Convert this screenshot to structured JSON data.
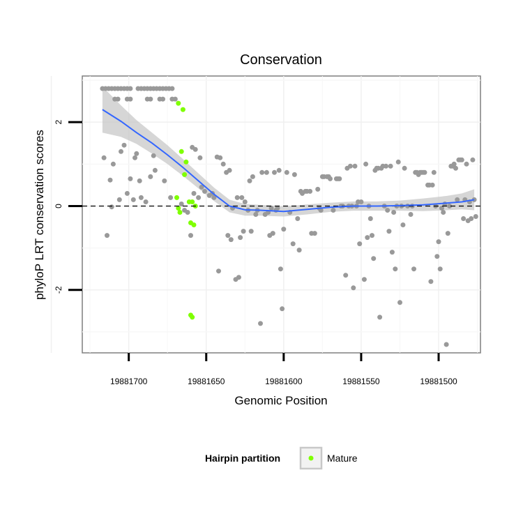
{
  "chart_data": {
    "type": "scatter",
    "title": "Conservation",
    "xlabel": "Genomic Position",
    "ylabel": "phyloP LRT conservation scores",
    "xlim": [
      19881730,
      19881473
    ],
    "ylim": [
      -3.5,
      3.1
    ],
    "x_reversed": true,
    "x_ticks": [
      19881700,
      19881650,
      19881600,
      19881550,
      19881500
    ],
    "x_tick_labels": [
      "19881700",
      "19881650",
      "19881600",
      "19881550",
      "19881500"
    ],
    "y_ticks": [
      2,
      0,
      -2
    ],
    "y_tick_labels": [
      "2",
      "0",
      "-2"
    ],
    "reference_line": {
      "y": 0,
      "style": "dashed"
    },
    "grid": true,
    "legend": {
      "title": "Hairpin partition",
      "position": "bottom",
      "entries": [
        {
          "label": "Mature",
          "color": "#7fff00"
        }
      ]
    },
    "colors": {
      "points": "#999999",
      "mature": "#7fff00",
      "smooth": "#3366ff",
      "ribbon": "#cccccc"
    },
    "series": [
      {
        "name": "Other",
        "color": "#999999",
        "points": [
          [
            19881717,
            2.8
          ],
          [
            19881715,
            2.8
          ],
          [
            19881713,
            2.8
          ],
          [
            19881711,
            2.8
          ],
          [
            19881709,
            2.8
          ],
          [
            19881707,
            2.8
          ],
          [
            19881705,
            2.8
          ],
          [
            19881703,
            2.8
          ],
          [
            19881701,
            2.8
          ],
          [
            19881699,
            2.8
          ],
          [
            19881694,
            2.8
          ],
          [
            19881692,
            2.8
          ],
          [
            19881690,
            2.8
          ],
          [
            19881688,
            2.8
          ],
          [
            19881686,
            2.8
          ],
          [
            19881684,
            2.8
          ],
          [
            19881682,
            2.8
          ],
          [
            19881680,
            2.8
          ],
          [
            19881678,
            2.8
          ],
          [
            19881676,
            2.8
          ],
          [
            19881674,
            2.8
          ],
          [
            19881672,
            2.8
          ],
          [
            19881709,
            2.55
          ],
          [
            19881707,
            2.55
          ],
          [
            19881701,
            2.55
          ],
          [
            19881699,
            2.55
          ],
          [
            19881688,
            2.55
          ],
          [
            19881686,
            2.55
          ],
          [
            19881680,
            2.55
          ],
          [
            19881678,
            2.55
          ],
          [
            19881672,
            2.55
          ],
          [
            19881670,
            2.55
          ],
          [
            19881716,
            1.15
          ],
          [
            19881714,
            -0.7
          ],
          [
            19881712,
            0.62
          ],
          [
            19881711,
            -0.02
          ],
          [
            19881710,
            1.0
          ],
          [
            19881706,
            0.15
          ],
          [
            19881705,
            1.3
          ],
          [
            19881703,
            1.45
          ],
          [
            19881701,
            0.3
          ],
          [
            19881699,
            0.65
          ],
          [
            19881697,
            0.15
          ],
          [
            19881696,
            1.15
          ],
          [
            19881695,
            1.25
          ],
          [
            19881693,
            0.6
          ],
          [
            19881692,
            0.2
          ],
          [
            19881689,
            0.1
          ],
          [
            19881686,
            0.7
          ],
          [
            19881684,
            1.2
          ],
          [
            19881683,
            0.85
          ],
          [
            19881677,
            0.6
          ],
          [
            19881673,
            0.2
          ],
          [
            19881666,
            0.05
          ],
          [
            19881664,
            -0.1
          ],
          [
            19881662,
            -0.15
          ],
          [
            19881660,
            -0.7
          ],
          [
            19881659,
            1.4
          ],
          [
            19881658,
            0.3
          ],
          [
            19881657,
            1.35
          ],
          [
            19881655,
            0.2
          ],
          [
            19881654,
            1.15
          ],
          [
            19881653,
            0.45
          ],
          [
            19881651,
            0.35
          ],
          [
            19881648,
            0.25
          ],
          [
            19881646,
            0.3
          ],
          [
            19881645,
            0.2
          ],
          [
            19881643,
            1.17
          ],
          [
            19881642,
            -1.55
          ],
          [
            19881641,
            1.15
          ],
          [
            19881639,
            1.0
          ],
          [
            19881637,
            0.8
          ],
          [
            19881636,
            -0.7
          ],
          [
            19881635,
            0.85
          ],
          [
            19881634,
            -0.8
          ],
          [
            19881633,
            -0.05
          ],
          [
            19881631,
            -1.75
          ],
          [
            19881630,
            0.2
          ],
          [
            19881629,
            -1.7
          ],
          [
            19881628,
            -0.75
          ],
          [
            19881627,
            0.2
          ],
          [
            19881626,
            -0.6
          ],
          [
            19881625,
            0.1
          ],
          [
            19881623,
            -0.1
          ],
          [
            19881622,
            0.6
          ],
          [
            19881621,
            -0.6
          ],
          [
            19881620,
            0.7
          ],
          [
            19881618,
            -0.2
          ],
          [
            19881617,
            -0.1
          ],
          [
            19881615,
            -2.8
          ],
          [
            19881614,
            0.8
          ],
          [
            19881612,
            -0.2
          ],
          [
            19881611,
            0.8
          ],
          [
            19881610,
            -0.15
          ],
          [
            19881609,
            -0.7
          ],
          [
            19881608,
            -0.05
          ],
          [
            19881607,
            -0.65
          ],
          [
            19881606,
            0.8
          ],
          [
            19881605,
            -0.1
          ],
          [
            19881604,
            -0.05
          ],
          [
            19881603,
            0.85
          ],
          [
            19881602,
            -1.5
          ],
          [
            19881601,
            -2.45
          ],
          [
            19881600,
            -0.55
          ],
          [
            19881598,
            0.8
          ],
          [
            19881596,
            -0.15
          ],
          [
            19881594,
            -0.9
          ],
          [
            19881593,
            0.75
          ],
          [
            19881591,
            -0.3
          ],
          [
            19881590,
            -1.05
          ],
          [
            19881589,
            0.35
          ],
          [
            19881588,
            0.3
          ],
          [
            19881586,
            0.35
          ],
          [
            19881585,
            0.35
          ],
          [
            19881583,
            0.35
          ],
          [
            19881582,
            -0.65
          ],
          [
            19881580,
            -0.65
          ],
          [
            19881578,
            0.4
          ],
          [
            19881577,
            -0.05
          ],
          [
            19881576,
            -0.1
          ],
          [
            19881575,
            0.7
          ],
          [
            19881574,
            0.7
          ],
          [
            19881572,
            0.7
          ],
          [
            19881571,
            0.7
          ],
          [
            19881570,
            0.65
          ],
          [
            19881568,
            -0.1
          ],
          [
            19881566,
            0.65
          ],
          [
            19881565,
            0.65
          ],
          [
            19881564,
            0.65
          ],
          [
            19881563,
            0.0
          ],
          [
            19881562,
            0.0
          ],
          [
            19881560,
            -1.65
          ],
          [
            19881559,
            0.9
          ],
          [
            19881558,
            0.0
          ],
          [
            19881557,
            0.95
          ],
          [
            19881556,
            0.0
          ],
          [
            19881555,
            -1.95
          ],
          [
            19881554,
            0.95
          ],
          [
            19881553,
            0.0
          ],
          [
            19881552,
            0.1
          ],
          [
            19881551,
            -0.9
          ],
          [
            19881550,
            0.1
          ],
          [
            19881548,
            -1.75
          ],
          [
            19881547,
            1.0
          ],
          [
            19881546,
            -0.75
          ],
          [
            19881545,
            0.0
          ],
          [
            19881544,
            -0.3
          ],
          [
            19881543,
            -0.7
          ],
          [
            19881542,
            -1.25
          ],
          [
            19881541,
            0.85
          ],
          [
            19881540,
            0.9
          ],
          [
            19881539,
            0.9
          ],
          [
            19881538,
            -2.65
          ],
          [
            19881537,
            0.9
          ],
          [
            19881536,
            0.95
          ],
          [
            19881535,
            0.0
          ],
          [
            19881534,
            0.95
          ],
          [
            19881533,
            -0.1
          ],
          [
            19881532,
            -0.6
          ],
          [
            19881531,
            0.95
          ],
          [
            19881530,
            -1.1
          ],
          [
            19881529,
            -0.15
          ],
          [
            19881528,
            -1.5
          ],
          [
            19881527,
            0.0
          ],
          [
            19881526,
            1.05
          ],
          [
            19881525,
            -2.3
          ],
          [
            19881524,
            0.0
          ],
          [
            19881523,
            -0.45
          ],
          [
            19881522,
            0.9
          ],
          [
            19881520,
            0.0
          ],
          [
            19881518,
            -0.2
          ],
          [
            19881517,
            0.0
          ],
          [
            19881516,
            -1.5
          ],
          [
            19881515,
            0.8
          ],
          [
            19881514,
            0.8
          ],
          [
            19881513,
            0.75
          ],
          [
            19881512,
            0.8
          ],
          [
            19881511,
            0.8
          ],
          [
            19881510,
            0.8
          ],
          [
            19881509,
            0.8
          ],
          [
            19881507,
            0.5
          ],
          [
            19881506,
            0.5
          ],
          [
            19881505,
            -1.8
          ],
          [
            19881504,
            0.5
          ],
          [
            19881503,
            0.8
          ],
          [
            19881502,
            0.0
          ],
          [
            19881501,
            -1.2
          ],
          [
            19881500,
            -0.85
          ],
          [
            19881499,
            -1.5
          ],
          [
            19881498,
            -0.05
          ],
          [
            19881497,
            -0.15
          ],
          [
            19881496,
            0.05
          ],
          [
            19881495,
            -3.3
          ],
          [
            19881494,
            -0.65
          ],
          [
            19881493,
            0.0
          ],
          [
            19881492,
            0.95
          ],
          [
            19881491,
            0.95
          ],
          [
            19881490,
            1.0
          ],
          [
            19881489,
            0.9
          ],
          [
            19881488,
            0.15
          ],
          [
            19881487,
            1.1
          ],
          [
            19881486,
            1.1
          ],
          [
            19881485,
            1.1
          ],
          [
            19881484,
            -0.3
          ],
          [
            19881483,
            0.15
          ],
          [
            19881482,
            1.0
          ],
          [
            19881481,
            -0.35
          ],
          [
            19881480,
            0.1
          ],
          [
            19881479,
            -0.3
          ],
          [
            19881478,
            1.1
          ],
          [
            19881477,
            0.15
          ],
          [
            19881476,
            -0.25
          ]
        ]
      },
      {
        "name": "Mature",
        "color": "#7fff00",
        "points": [
          [
            19881668,
            2.45
          ],
          [
            19881665,
            2.3
          ],
          [
            19881666,
            1.3
          ],
          [
            19881663,
            1.05
          ],
          [
            19881664,
            0.75
          ],
          [
            19881669,
            0.2
          ],
          [
            19881668,
            -0.05
          ],
          [
            19881667,
            -0.15
          ],
          [
            19881661,
            0.1
          ],
          [
            19881659,
            0.1
          ],
          [
            19881660,
            -0.4
          ],
          [
            19881658,
            -0.45
          ],
          [
            19881660,
            -2.6
          ],
          [
            19881659,
            -2.65
          ],
          [
            19881657,
            0.0
          ]
        ]
      }
    ],
    "smooth": {
      "x": [
        19881717,
        19881705,
        19881695,
        19881685,
        19881675,
        19881665,
        19881655,
        19881645,
        19881635,
        19881625,
        19881615,
        19881600,
        19881585,
        19881570,
        19881555,
        19881540,
        19881525,
        19881510,
        19881495,
        19881485,
        19881477
      ],
      "y": [
        2.3,
        2.02,
        1.75,
        1.5,
        1.22,
        0.92,
        0.6,
        0.28,
        0.0,
        -0.09,
        -0.1,
        -0.13,
        -0.08,
        -0.03,
        0.0,
        0.0,
        0.01,
        0.03,
        0.07,
        0.1,
        0.15
      ],
      "lower": [
        1.75,
        1.65,
        1.48,
        1.25,
        1.0,
        0.72,
        0.42,
        0.12,
        -0.15,
        -0.23,
        -0.23,
        -0.25,
        -0.2,
        -0.14,
        -0.11,
        -0.11,
        -0.11,
        -0.12,
        -0.1,
        -0.08,
        -0.1
      ],
      "upper": [
        2.85,
        2.4,
        2.05,
        1.75,
        1.45,
        1.12,
        0.78,
        0.44,
        0.15,
        0.05,
        0.03,
        -0.01,
        0.04,
        0.08,
        0.11,
        0.11,
        0.13,
        0.18,
        0.24,
        0.3,
        0.4
      ]
    }
  }
}
